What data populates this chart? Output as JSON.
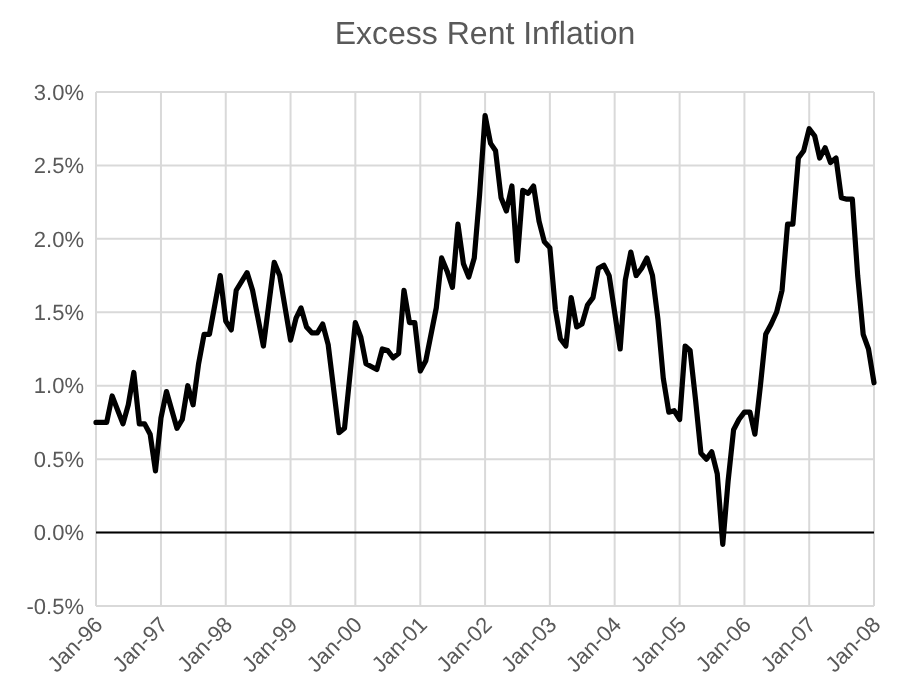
{
  "chart_data": {
    "type": "line",
    "title": "Excess Rent Inflation",
    "x": [
      "1996-01",
      "1996-03",
      "1996-04",
      "1996-06",
      "1996-07",
      "1996-08",
      "1996-09",
      "1996-10",
      "1996-11",
      "1996-12",
      "1997-01",
      "1997-02",
      "1997-04",
      "1997-05",
      "1997-06",
      "1997-07",
      "1997-08",
      "1997-09",
      "1997-10",
      "1997-12",
      "1998-01",
      "1998-02",
      "1998-03",
      "1998-05",
      "1998-06",
      "1998-08",
      "1998-10",
      "1998-11",
      "1999-01",
      "1999-02",
      "1999-03",
      "1999-04",
      "1999-05",
      "1999-06",
      "1999-07",
      "1999-08",
      "1999-10",
      "1999-11",
      "2000-01",
      "2000-02",
      "2000-03",
      "2000-05",
      "2000-06",
      "2000-07",
      "2000-08",
      "2000-09",
      "2000-10",
      "2000-11",
      "2000-12",
      "2001-01",
      "2001-02",
      "2001-04",
      "2001-05",
      "2001-06",
      "2001-07",
      "2001-08",
      "2001-09",
      "2001-10",
      "2001-11",
      "2001-12",
      "2002-01",
      "2002-02",
      "2002-03",
      "2002-04",
      "2002-05",
      "2002-06",
      "2002-07",
      "2002-08",
      "2002-09",
      "2002-10",
      "2002-11",
      "2002-12",
      "2003-01",
      "2003-02",
      "2003-03",
      "2003-04",
      "2003-05",
      "2003-06",
      "2003-07",
      "2003-08",
      "2003-09",
      "2003-10",
      "2003-11",
      "2003-12",
      "2004-01",
      "2004-02",
      "2004-03",
      "2004-04",
      "2004-05",
      "2004-06",
      "2004-07",
      "2004-08",
      "2004-09",
      "2004-10",
      "2004-11",
      "2004-12",
      "2005-01",
      "2005-02",
      "2005-03",
      "2005-04",
      "2005-05",
      "2005-06",
      "2005-07",
      "2005-08",
      "2005-09",
      "2005-10",
      "2005-11",
      "2005-12",
      "2006-01",
      "2006-02",
      "2006-03",
      "2006-04",
      "2006-05",
      "2006-06",
      "2006-07",
      "2006-08",
      "2006-09",
      "2006-10",
      "2006-11",
      "2006-12",
      "2007-01",
      "2007-02",
      "2007-03",
      "2007-04",
      "2007-05",
      "2007-06",
      "2007-07",
      "2007-08",
      "2007-09",
      "2007-10",
      "2007-11",
      "2007-12",
      "2008-01"
    ],
    "series": [
      {
        "color": "#000000",
        "values": [
          0.75,
          0.75,
          0.93,
          0.74,
          0.87,
          1.09,
          0.74,
          0.74,
          0.67,
          0.42,
          0.78,
          0.96,
          0.71,
          0.77,
          1.0,
          0.87,
          1.15,
          1.35,
          1.35,
          1.75,
          1.44,
          1.38,
          1.65,
          1.77,
          1.65,
          1.27,
          1.84,
          1.75,
          1.31,
          1.46,
          1.53,
          1.4,
          1.36,
          1.36,
          1.42,
          1.28,
          0.68,
          0.71,
          1.43,
          1.33,
          1.15,
          1.11,
          1.25,
          1.24,
          1.19,
          1.22,
          1.65,
          1.43,
          1.43,
          1.1,
          1.17,
          1.53,
          1.87,
          1.78,
          1.67,
          2.1,
          1.83,
          1.74,
          1.87,
          2.3,
          2.84,
          2.65,
          2.6,
          2.28,
          2.19,
          2.36,
          1.85,
          2.33,
          2.31,
          2.36,
          2.12,
          1.98,
          1.94,
          1.52,
          1.32,
          1.27,
          1.6,
          1.4,
          1.42,
          1.55,
          1.6,
          1.8,
          1.82,
          1.75,
          1.5,
          1.25,
          1.72,
          1.91,
          1.75,
          1.8,
          1.87,
          1.75,
          1.45,
          1.05,
          0.82,
          0.83,
          0.77,
          1.27,
          1.24,
          0.9,
          0.54,
          0.5,
          0.55,
          0.4,
          -0.08,
          0.35,
          0.7,
          0.77,
          0.82,
          0.82,
          0.67,
          1.0,
          1.35,
          1.42,
          1.5,
          1.65,
          2.1,
          2.1,
          2.55,
          2.6,
          2.75,
          2.7,
          2.55,
          2.62,
          2.52,
          2.55,
          2.28,
          2.27,
          2.27,
          1.75,
          1.35,
          1.25,
          1.02
        ]
      }
    ],
    "xlim": [
      "1996-01",
      "2008-01"
    ],
    "xticks": [
      {
        "value": "1996-01",
        "label": "Jan-96"
      },
      {
        "value": "1997-01",
        "label": "Jan-97"
      },
      {
        "value": "1998-01",
        "label": "Jan-98"
      },
      {
        "value": "1999-01",
        "label": "Jan-99"
      },
      {
        "value": "2000-01",
        "label": "Jan-00"
      },
      {
        "value": "2001-01",
        "label": "Jan-01"
      },
      {
        "value": "2002-01",
        "label": "Jan-02"
      },
      {
        "value": "2003-01",
        "label": "Jan-03"
      },
      {
        "value": "2004-01",
        "label": "Jan-04"
      },
      {
        "value": "2005-01",
        "label": "Jan-05"
      },
      {
        "value": "2006-01",
        "label": "Jan-06"
      },
      {
        "value": "2007-01",
        "label": "Jan-07"
      },
      {
        "value": "2008-01",
        "label": "Jan-08"
      }
    ],
    "ylim": [
      -0.5,
      3.0
    ],
    "yticks": [
      {
        "value": -0.5,
        "label": "-0.5%"
      },
      {
        "value": 0,
        "label": "0.0%"
      },
      {
        "value": 0.5,
        "label": "0.5%"
      },
      {
        "value": 1,
        "label": "1.0%"
      },
      {
        "value": 1.5,
        "label": "1.5%"
      },
      {
        "value": 2,
        "label": "2.0%"
      },
      {
        "value": 2.5,
        "label": "2.5%"
      },
      {
        "value": 3,
        "label": "3.0%"
      }
    ],
    "grid": true,
    "marker": "none",
    "line_style": "solid"
  }
}
